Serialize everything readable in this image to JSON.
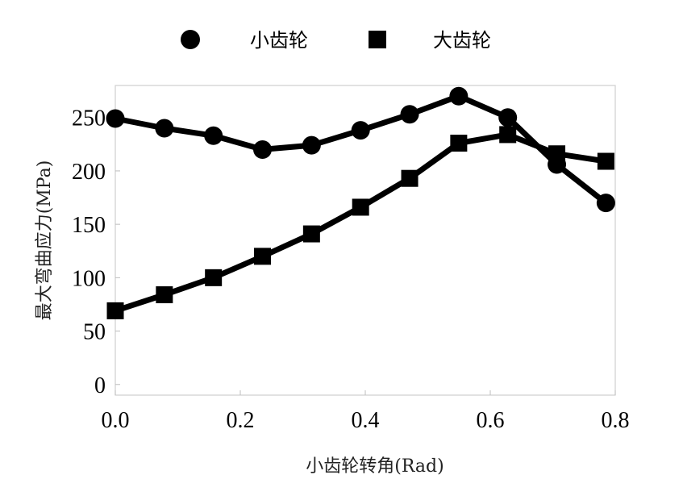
{
  "chart_data": {
    "type": "line",
    "xlabel": "小齿轮转角(Rad)",
    "ylabel": "最大弯曲应力(MPa)",
    "xlim": [
      0.0,
      0.8
    ],
    "ylim": [
      -10,
      280
    ],
    "x_ticks": [
      "0.0",
      "0.2",
      "0.4",
      "0.6",
      "0.8"
    ],
    "y_ticks": [
      "0",
      "50",
      "100",
      "150",
      "200",
      "250"
    ],
    "legend_position": "top",
    "grid": false,
    "series": [
      {
        "name": "小齿轮",
        "marker": "circle",
        "color": "#000000",
        "x": [
          0.0,
          0.0785,
          0.157,
          0.2355,
          0.314,
          0.3925,
          0.471,
          0.5495,
          0.628,
          0.7065,
          0.785
        ],
        "y": [
          249,
          240,
          233,
          220,
          224,
          238,
          253,
          270,
          250,
          206,
          170
        ]
      },
      {
        "name": "大齿轮",
        "marker": "square",
        "color": "#000000",
        "x": [
          0.0,
          0.0785,
          0.157,
          0.2355,
          0.314,
          0.3925,
          0.471,
          0.5495,
          0.628,
          0.7065,
          0.785
        ],
        "y": [
          69,
          84,
          100,
          120,
          141,
          166,
          193,
          226,
          234,
          216,
          209
        ]
      }
    ]
  }
}
